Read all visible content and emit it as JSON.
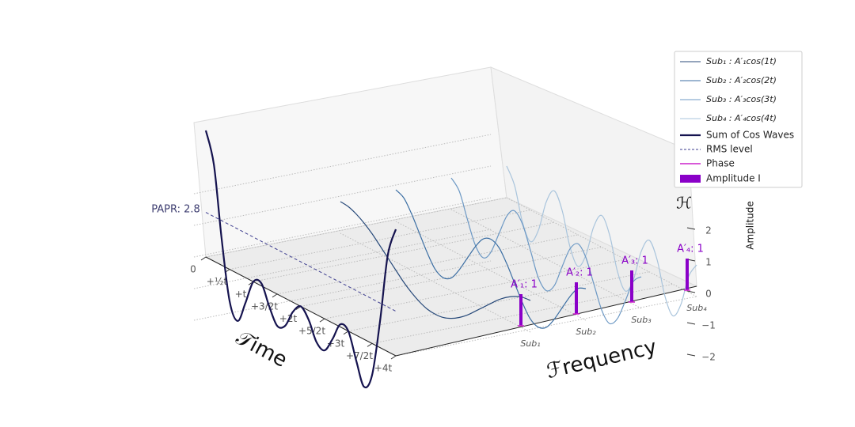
{
  "chart_data": {
    "type": "line3d",
    "x": [
      0,
      0.17,
      0.33,
      0.5,
      0.67,
      0.83,
      1,
      1.17,
      1.33,
      1.5,
      1.67,
      1.83,
      2,
      2.17,
      2.33,
      2.5,
      2.67,
      2.83,
      3,
      3.17,
      3.33,
      3.5,
      3.67,
      3.83,
      4
    ],
    "xlim": [
      0,
      4
    ],
    "xticks": [
      0,
      {
        "value": 0.5,
        "label": "+½t"
      },
      {
        "value": 1,
        "label": "+t"
      },
      {
        "value": 1.5,
        "label": "+3/2t"
      },
      {
        "value": 2,
        "label": "+2t"
      },
      {
        "value": 2.5,
        "label": "+5/2t"
      },
      {
        "value": 3,
        "label": "+3t"
      },
      {
        "value": 3.5,
        "label": "+7/2t"
      },
      {
        "value": 4,
        "label": "+4t"
      }
    ],
    "xlabel": "𝒯ime",
    "categories": [
      "Sub₁",
      "Sub₂",
      "Sub₃",
      "Sub₄"
    ],
    "frequency_label": "ℱrequency",
    "zlim": [
      -2,
      2
    ],
    "zticks": [
      {
        "value": -2,
        "label": "−2"
      },
      {
        "value": -1,
        "label": "−1"
      },
      0,
      1,
      2
    ],
    "zlabel": "Amplitude",
    "z_symbol": "ℋ",
    "series": [
      {
        "name": "Sub₁ : A′₁cos(1t)",
        "color": "#284a7a",
        "plane": 1,
        "values": [
          1,
          0.97,
          0.87,
          0.71,
          0.5,
          0.26,
          0,
          -0.26,
          -0.5,
          -0.71,
          -0.87,
          -0.97,
          -1,
          -0.97,
          -0.87,
          -0.71,
          -0.5,
          -0.26,
          0,
          0.26,
          0.5,
          0.71,
          0.87,
          0.97,
          1
        ]
      },
      {
        "name": "Sub₂ : A′₂cos(2t)",
        "color": "#3b6ea3",
        "plane": 2,
        "values": [
          1,
          0.87,
          0.5,
          0,
          -0.5,
          -0.87,
          -1,
          -0.87,
          -0.5,
          0,
          0.5,
          0.87,
          1,
          0.87,
          0.5,
          0,
          -0.5,
          -0.87,
          -1,
          -0.87,
          -0.5,
          0,
          0.5,
          0.87,
          1
        ]
      },
      {
        "name": "Sub₃ : A′₃cos(3t)",
        "color": "#6c98c4",
        "plane": 3,
        "values": [
          1,
          0.71,
          0,
          -0.71,
          -1,
          -0.71,
          0,
          0.71,
          1,
          0.71,
          0,
          -0.71,
          -1,
          -0.71,
          0,
          0.71,
          1,
          0.71,
          0,
          -0.71,
          -1,
          -0.71,
          0,
          0.71,
          1
        ]
      },
      {
        "name": "Sub₄ : A′₄cos(4t)",
        "color": "#a9c4dc",
        "plane": 4,
        "values": [
          1,
          0.5,
          -0.5,
          -1,
          -0.5,
          0.5,
          1,
          0.5,
          -0.5,
          -1,
          -0.5,
          0.5,
          1,
          0.5,
          -0.5,
          -1,
          -0.5,
          0.5,
          1,
          0.5,
          -0.5,
          -1,
          -0.5,
          0.5,
          1
        ]
      },
      {
        "name": "Sum of Cos Waves",
        "color": "#15134f",
        "plane": 0,
        "values": [
          4,
          3.05,
          0.87,
          -1,
          -1.5,
          -0.82,
          0,
          0.08,
          -0.5,
          -1,
          -0.87,
          -0.31,
          0,
          -0.31,
          -0.87,
          -1,
          -0.5,
          0.08,
          0,
          -0.82,
          -1.5,
          -1,
          0.87,
          3.05,
          4
        ]
      }
    ],
    "rms": {
      "name": "RMS level",
      "color": "#3d3d8f",
      "value": 1.41
    },
    "papr_label": "PAPR: 2.8",
    "phase": {
      "name": "Phase",
      "color": "#cc22cc",
      "values": [
        0,
        0,
        0,
        0
      ]
    },
    "amplitude": {
      "name": "Amplitude I",
      "color": "#8a00c8",
      "values": [
        1,
        1,
        1,
        1
      ],
      "value_labels": [
        "A′₁: 1",
        "A′₂: 1",
        "A′₃: 1",
        "A′₄: 1"
      ]
    },
    "legend": "upper right",
    "grid": true
  }
}
